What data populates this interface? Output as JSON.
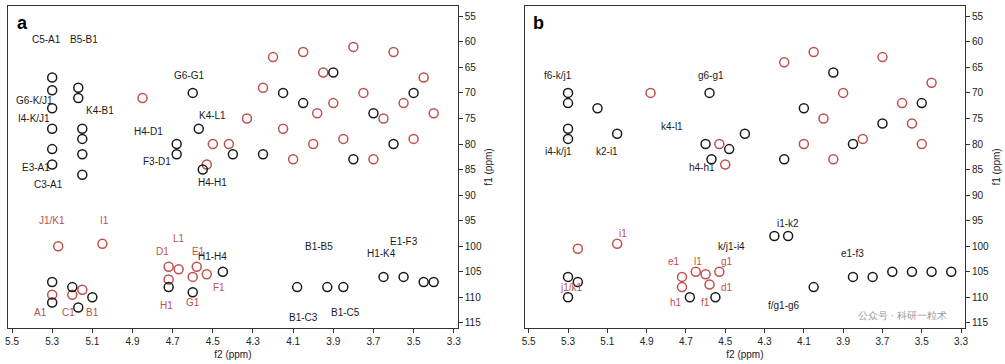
{
  "chart_data": [
    {
      "type": "scatter",
      "title": "a",
      "x_label": "f2 (ppm)",
      "y_label": "f1 (ppm)",
      "xlim": [
        5.52,
        3.28
      ],
      "xticks": [
        5.5,
        5.3,
        5.1,
        4.9,
        4.7,
        4.5,
        4.3,
        4.1,
        3.9,
        3.7,
        3.5,
        3.3
      ],
      "ylim": [
        116,
        53
      ],
      "yticks": [
        55,
        60,
        65,
        70,
        75,
        80,
        85,
        90,
        95,
        100,
        105,
        110,
        115
      ],
      "grid": false,
      "series": [
        {
          "color": "#c0504d",
          "marker": "circle-open",
          "x": [
            5.27,
            5.05,
            5.3,
            5.2,
            5.15,
            4.72,
            4.67,
            4.58,
            4.72,
            4.6,
            4.53,
            4.85,
            4.5,
            4.53,
            4.42,
            4.33,
            4.25,
            4.15,
            4.05,
            4.0,
            3.95,
            3.9,
            3.85,
            3.8,
            3.75,
            3.7,
            3.65,
            3.6,
            3.55,
            3.5,
            3.45,
            3.4,
            4.1,
            4.2,
            3.98
          ],
          "values": [
            100,
            99.5,
            109.5,
            109.5,
            108.5,
            104,
            104.5,
            104,
            106.5,
            106,
            105.5,
            71,
            80,
            84,
            80,
            75,
            69,
            77,
            62,
            80,
            66,
            72,
            79,
            61,
            70,
            83,
            75,
            62,
            72,
            79,
            67,
            74,
            83,
            63,
            74
          ]
        },
        {
          "color": "#1a1a1a",
          "marker": "circle-open",
          "x": [
            5.3,
            5.3,
            5.17,
            5.17,
            5.3,
            5.3,
            5.15,
            5.15,
            5.3,
            5.3,
            5.15,
            5.15,
            4.6,
            4.57,
            4.68,
            4.68,
            4.55,
            4.45,
            4.08,
            3.93,
            3.85,
            3.65,
            3.55,
            3.45,
            3.4,
            5.3,
            5.3,
            5.2,
            5.17,
            5.1,
            4.72,
            4.6,
            4.05,
            3.9,
            3.8,
            3.7,
            3.6,
            3.5,
            4.25,
            4.15,
            4.4
          ],
          "values": [
            67,
            69.5,
            69,
            71,
            73,
            77,
            77,
            79,
            81,
            84,
            82,
            86,
            70,
            77,
            80,
            82,
            85,
            105,
            108,
            108,
            108,
            106,
            106,
            107,
            107,
            107,
            111,
            108,
            112,
            110,
            108,
            109,
            72,
            66,
            83,
            74,
            80,
            70,
            82,
            70,
            82
          ]
        }
      ],
      "annotations": [
        {
          "text": "C5-A1",
          "x": 5.33,
          "y": 59.5,
          "color": "#1a1a1a"
        },
        {
          "text": "B5-B1",
          "x": 5.14,
          "y": 59.5,
          "color": "#1a1a1a"
        },
        {
          "text": "G6-K/J1",
          "x": 5.39,
          "y": 71.5,
          "color": "#1a1a1a"
        },
        {
          "text": "I4-K/J1",
          "x": 5.39,
          "y": 75,
          "color": "#1a1a1a"
        },
        {
          "text": "K4-B1",
          "x": 5.06,
          "y": 73.5,
          "color": "#1a1a1a"
        },
        {
          "text": "E3-A1",
          "x": 5.38,
          "y": 84.5,
          "color": "#1a1a1a"
        },
        {
          "text": "C3-A1",
          "x": 5.32,
          "y": 88,
          "color": "#1a1a1a"
        },
        {
          "text": "G6-G1",
          "x": 4.62,
          "y": 66.5,
          "color": "#1a1a1a"
        },
        {
          "text": "K4-L1",
          "x": 4.5,
          "y": 74.5,
          "color": "#1a1a1a"
        },
        {
          "text": "H4-D1",
          "x": 4.82,
          "y": 77.5,
          "color": "#1a1a1a"
        },
        {
          "text": "F3-D1",
          "x": 4.78,
          "y": 83.5,
          "color": "#1a1a1a"
        },
        {
          "text": "H4-H1",
          "x": 4.5,
          "y": 87.5,
          "color": "#1a1a1a"
        },
        {
          "text": "H1-H4",
          "x": 4.5,
          "y": 102,
          "color": "#1a1a1a"
        },
        {
          "text": "B1-C3",
          "x": 4.05,
          "y": 114,
          "color": "#1a1a1a"
        },
        {
          "text": "B1-B5",
          "x": 3.97,
          "y": 100,
          "color": "#1a1a1a"
        },
        {
          "text": "B1-C5",
          "x": 3.84,
          "y": 113,
          "color": "#1a1a1a"
        },
        {
          "text": "H1-K4",
          "x": 3.66,
          "y": 101.5,
          "color": "#1a1a1a"
        },
        {
          "text": "E1-F3",
          "x": 3.55,
          "y": 99,
          "color": "#1a1a1a"
        },
        {
          "text": "J1/K1",
          "x": 5.3,
          "y": 95,
          "color": "#c0504d"
        },
        {
          "text": "I1",
          "x": 5.04,
          "y": 95,
          "color": "#c0504d"
        },
        {
          "text": "A1",
          "x": 5.36,
          "y": 113,
          "color": "#c0504d"
        },
        {
          "text": "C1",
          "x": 5.22,
          "y": 113,
          "color": "#c0504d"
        },
        {
          "text": "B1",
          "x": 5.1,
          "y": 113,
          "color": "#c0504d"
        },
        {
          "text": "D1",
          "x": 4.75,
          "y": 101,
          "color": "#c0504d"
        },
        {
          "text": "L1",
          "x": 4.67,
          "y": 98.5,
          "color": "#c0504d"
        },
        {
          "text": "E1",
          "x": 4.57,
          "y": 101,
          "color": "#c0504d"
        },
        {
          "text": "H1",
          "x": 4.73,
          "y": 111.5,
          "color": "#c0504d"
        },
        {
          "text": "G1",
          "x": 4.6,
          "y": 111,
          "color": "#c0504d"
        },
        {
          "text": "F1",
          "x": 4.47,
          "y": 108,
          "color": "#c0504d"
        }
      ]
    },
    {
      "type": "scatter",
      "title": "b",
      "x_label": "f2 (ppm)",
      "y_label": "f1 (ppm)",
      "xlim": [
        5.52,
        3.28
      ],
      "xticks": [
        5.5,
        5.3,
        5.1,
        4.9,
        4.7,
        4.5,
        4.3,
        4.1,
        3.9,
        3.7,
        3.5,
        3.3
      ],
      "ylim": [
        116,
        53
      ],
      "yticks": [
        55,
        60,
        65,
        70,
        75,
        80,
        85,
        90,
        95,
        100,
        105,
        110,
        115
      ],
      "grid": false,
      "series": [
        {
          "color": "#c0504d",
          "marker": "circle-open",
          "x": [
            5.25,
            5.05,
            4.72,
            4.65,
            4.6,
            4.53,
            4.72,
            4.58,
            4.88,
            4.53,
            4.5,
            4.1,
            4.0,
            3.9,
            3.8,
            3.7,
            3.6,
            3.5,
            3.45,
            4.2,
            4.05,
            3.95,
            3.55
          ],
          "values": [
            100.5,
            99.5,
            106,
            105,
            105.5,
            105,
            108,
            107.5,
            70,
            80,
            84,
            80,
            75,
            70,
            79,
            63,
            72,
            80,
            68,
            64,
            62,
            83,
            76
          ]
        },
        {
          "color": "#1a1a1a",
          "marker": "circle-open",
          "x": [
            5.3,
            5.3,
            5.3,
            5.3,
            5.15,
            5.05,
            4.58,
            4.6,
            4.57,
            4.48,
            4.4,
            4.25,
            4.18,
            4.05,
            3.85,
            3.75,
            3.65,
            3.55,
            3.45,
            3.35,
            5.3,
            5.3,
            5.25,
            4.68,
            4.55,
            4.1,
            3.95,
            3.85,
            3.7,
            3.5,
            4.2
          ],
          "values": [
            70,
            72,
            77,
            79,
            73,
            78,
            70,
            80,
            83,
            81,
            78,
            98,
            98,
            108,
            106,
            106,
            105,
            105,
            105,
            105,
            106,
            110,
            107,
            110,
            110,
            73,
            66,
            80,
            76,
            72,
            83
          ]
        }
      ],
      "annotations": [
        {
          "text": "f6-k/j1",
          "x": 5.35,
          "y": 66.5,
          "color": "#1a1a1a"
        },
        {
          "text": "i4-k/j1",
          "x": 5.35,
          "y": 81.5,
          "color": "#1a1a1a"
        },
        {
          "text": "k2-i1",
          "x": 5.1,
          "y": 81.5,
          "color": "#1a1a1a"
        },
        {
          "text": "g6-g1",
          "x": 4.57,
          "y": 66.5,
          "color": "#1a1a1a"
        },
        {
          "text": "k4-l1",
          "x": 4.77,
          "y": 76.5,
          "color": "#1a1a1a"
        },
        {
          "text": "h4-h1",
          "x": 4.62,
          "y": 84.5,
          "color": "#1a1a1a"
        },
        {
          "text": "k/j1-i4",
          "x": 4.47,
          "y": 100,
          "color": "#1a1a1a"
        },
        {
          "text": "i1-k2",
          "x": 4.18,
          "y": 95.5,
          "color": "#1a1a1a"
        },
        {
          "text": "f/g1-g6",
          "x": 4.2,
          "y": 111.5,
          "color": "#1a1a1a"
        },
        {
          "text": "e1-f3",
          "x": 3.85,
          "y": 101.5,
          "color": "#1a1a1a"
        },
        {
          "text": "i1",
          "x": 5.02,
          "y": 97.5,
          "color": "#c0504d"
        },
        {
          "text": "j1/k1",
          "x": 5.28,
          "y": 108,
          "color": "#c0504d"
        },
        {
          "text": "e1",
          "x": 4.76,
          "y": 103,
          "color": "#c0504d"
        },
        {
          "text": "l1",
          "x": 4.64,
          "y": 103,
          "color": "#c0504d"
        },
        {
          "text": "g1",
          "x": 4.49,
          "y": 103,
          "color": "#c0504d"
        },
        {
          "text": "h1",
          "x": 4.75,
          "y": 111,
          "color": "#c0504d"
        },
        {
          "text": "f1",
          "x": 4.6,
          "y": 111,
          "color": "#c0504d"
        },
        {
          "text": "d1",
          "x": 4.49,
          "y": 108,
          "color": "#c0504d"
        },
        {
          "text": "公众号 · 科研一粒术",
          "x": 3.6,
          "y": 113.5,
          "color": "#9a9a9a"
        }
      ]
    }
  ]
}
